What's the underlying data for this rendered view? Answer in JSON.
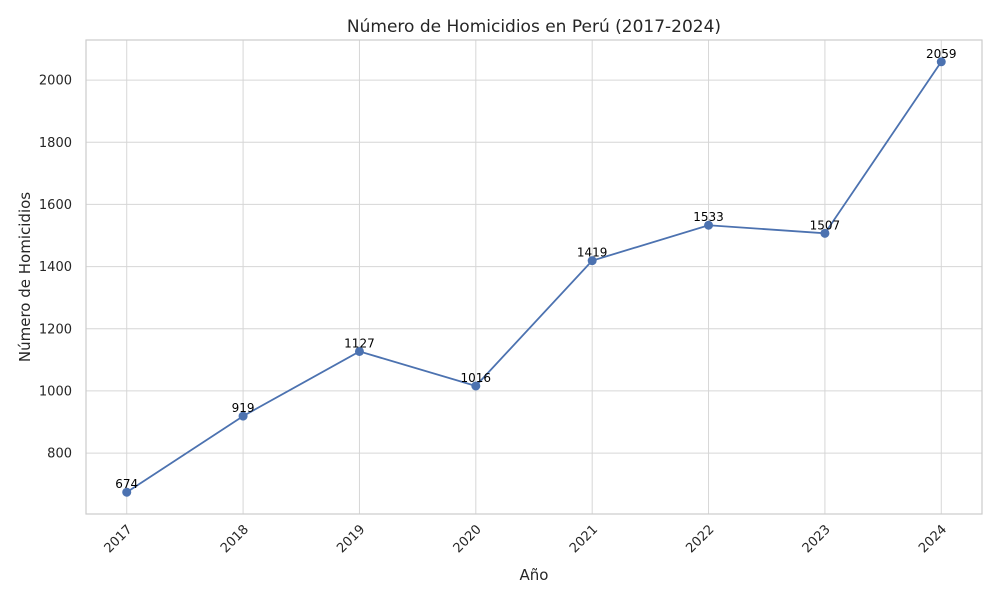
{
  "chart_data": {
    "type": "line",
    "title": "Número de Homicidios en Perú (2017-2024)",
    "xlabel": "Año",
    "ylabel": "Número de Homicidios",
    "categories": [
      "2017",
      "2018",
      "2019",
      "2020",
      "2021",
      "2022",
      "2023",
      "2024"
    ],
    "values": [
      674,
      919,
      1127,
      1016,
      1419,
      1533,
      1507,
      2059
    ],
    "data_labels": [
      "674",
      "919",
      "1127",
      "1016",
      "1419",
      "1533",
      "1507",
      "2059"
    ],
    "yticks": [
      800,
      1000,
      1200,
      1400,
      1600,
      1800,
      2000
    ],
    "ytick_labels": [
      "800",
      "1000",
      "1200",
      "1400",
      "1600",
      "1800",
      "2000"
    ],
    "ylim": [
      604,
      2129
    ],
    "grid": true,
    "marker": "circle",
    "colors": {
      "line": "#4c72b0",
      "grid": "#d6d6d6",
      "frame": "#cccccc"
    }
  }
}
